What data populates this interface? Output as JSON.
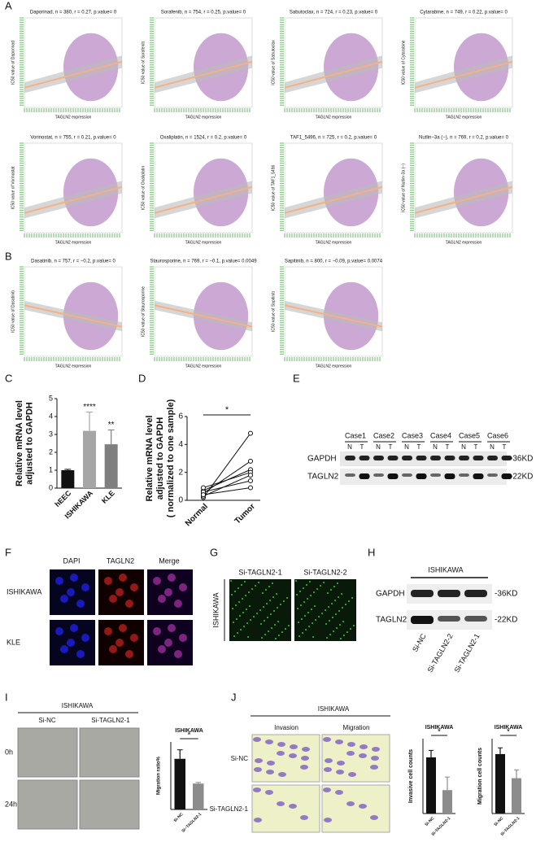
{
  "panel_letters": [
    "A",
    "B",
    "C",
    "D",
    "E",
    "F",
    "G",
    "H",
    "I",
    "J"
  ],
  "scatter": {
    "xlabel": "TAGLN2 expression",
    "panels": [
      {
        "title": "Daporinad, n = 380, r = 0.27, p.value= 0",
        "ylabel": "IC50 value of Daporinad",
        "group": "A"
      },
      {
        "title": "Sorafenib, n = 754, r = 0.25, p.value= 0",
        "ylabel": "IC50 value of Sorafenib",
        "group": "A"
      },
      {
        "title": "Sabutoclax, n = 724, r = 0.23, p.value= 0",
        "ylabel": "IC50 value of Sabutoclax",
        "group": "A"
      },
      {
        "title": "Cytarabine, n = 749, r = 0.22, p.value= 0",
        "ylabel": "IC50 value of Cytarabine",
        "group": "A"
      },
      {
        "title": "Vorinostat, n = 755, r = 0.21, p.value= 0",
        "ylabel": "IC50 value of Vorinostat",
        "group": "A"
      },
      {
        "title": "Oxaliplatin, n = 1524, r = 0.2, p.value= 0",
        "ylabel": "IC50 value of Oxaliplatin",
        "group": "A"
      },
      {
        "title": "TAF1_5496, n = 725, r = 0.2, p.value= 0",
        "ylabel": "IC50 value of TAF1_5496",
        "group": "A"
      },
      {
        "title": "Nutlin−3a (−), n = 769, r = 0.2, p.value= 0",
        "ylabel": "IC50 value of Nutlin−3a (−)",
        "group": "A"
      },
      {
        "title": "Dasatinib, n = 757, r = −0.2, p.value= 0",
        "ylabel": "IC50 value of Dasatinib",
        "group": "B"
      },
      {
        "title": "Staurosporine, n = 769, r = −0.1, p.value= 0.0049",
        "ylabel": "IC50 value of Staurosporine",
        "group": "B"
      },
      {
        "title": "Sapitinib, n = 800, r = −0.09, p.value= 0.0074",
        "ylabel": "IC50 value of Sapitinib",
        "group": "B"
      }
    ]
  },
  "charts": {
    "c": {
      "type": "bar",
      "ylabel": [
        "Relative mRNA level",
        "adjusted to GAPDH"
      ],
      "categories": [
        "hEEC",
        "ISHIKAWA",
        "KLE"
      ],
      "values": [
        1.0,
        3.2,
        2.45
      ],
      "errors": [
        0.05,
        1.05,
        0.8
      ],
      "colors": [
        "#111111",
        "#a6a6a6",
        "#7f7f7f"
      ],
      "significance": [
        null,
        "****",
        "**"
      ],
      "ylim": [
        0,
        5
      ],
      "yticks": [
        0,
        1,
        2,
        3,
        4,
        5
      ]
    },
    "d": {
      "type": "paired",
      "ylabel": [
        "Relative mRNA level",
        "adjusted to GAPDH",
        "( normalized to one sample)"
      ],
      "categories": [
        "Normal",
        "Tumor"
      ],
      "series": [
        {
          "values": [
            0.2,
            4.8
          ]
        },
        {
          "values": [
            0.5,
            2.8
          ]
        },
        {
          "values": [
            0.7,
            2.2
          ]
        },
        {
          "values": [
            0.9,
            2.0
          ]
        },
        {
          "values": [
            0.3,
            1.8
          ]
        },
        {
          "values": [
            0.6,
            1.4
          ]
        },
        {
          "values": [
            0.4,
            0.9
          ]
        }
      ],
      "significance": "*",
      "ylim": [
        0,
        6
      ],
      "yticks": [
        0,
        2,
        4,
        6
      ]
    },
    "i": {
      "type": "bar",
      "title": "ISHIKAWA",
      "ylabel": [
        "Migration ratio%"
      ],
      "categories": [
        "Si-NC",
        "Si−TAGLN2-1"
      ],
      "values": [
        45,
        23
      ],
      "errors": [
        8,
        1
      ],
      "colors": [
        "#111111",
        "#8c8c8c"
      ],
      "significance": "*",
      "ylim": [
        0,
        60
      ]
    },
    "j1": {
      "type": "bar",
      "title": "ISHIKAWA",
      "ylabel": [
        "Invasive cell counts"
      ],
      "categories": [
        "Si-NC",
        "Si-TAGLN2-1"
      ],
      "values": [
        120,
        50
      ],
      "errors": [
        15,
        28
      ],
      "colors": [
        "#111111",
        "#8c8c8c"
      ],
      "significance": "*",
      "ylim": [
        0,
        160
      ]
    },
    "j2": {
      "type": "bar",
      "title": "ISHIKAWA",
      "ylabel": [
        "Migration cell counts"
      ],
      "categories": [
        "Si-NC",
        "Si-TAGLN2-1"
      ],
      "values": [
        143,
        85
      ],
      "errors": [
        15,
        20
      ],
      "colors": [
        "#111111",
        "#8c8c8c"
      ],
      "significance": "*",
      "ylim": [
        0,
        180
      ]
    }
  },
  "e": {
    "cases": [
      "Case1",
      "Case2",
      "Case3",
      "Case4",
      "Case5",
      "Case6"
    ],
    "lanes": [
      "N",
      "T"
    ],
    "rows": [
      "GAPDH",
      "TAGLN2"
    ],
    "sizes": [
      "-36KD",
      "-22KD"
    ]
  },
  "f": {
    "columns": [
      "DAPI",
      "TAGLN2",
      "Merge"
    ],
    "rows": [
      "ISHIKAWA",
      "KLE"
    ]
  },
  "g": {
    "columns": [
      "Si-TAGLN2-1",
      "Si-TAGLN2-2"
    ],
    "side": "ISHIKAWA"
  },
  "h": {
    "header": "ISHIKAWA",
    "rows": [
      "GAPDH",
      "TAGLN2"
    ],
    "sizes": [
      "-36KD",
      "-22KD"
    ],
    "lanes": [
      "Si-NC",
      "Si-TAGLN2-2",
      "Si-TAGLN2-1"
    ]
  },
  "i": {
    "header": "ISHIKAWA",
    "columns": [
      "Si-NC",
      "Si-TAGLN2-1"
    ],
    "rows": [
      "0h",
      "24h"
    ]
  },
  "j": {
    "header": "ISHIKAWA",
    "columns": [
      "Invasion",
      "Migration"
    ],
    "rows": [
      "Si-NC",
      "Si-TAGLN2-1"
    ]
  }
}
